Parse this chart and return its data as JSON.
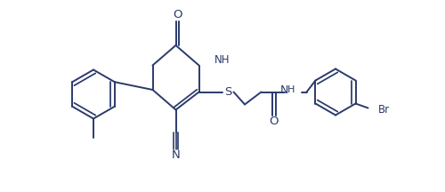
{
  "bg_color": "#ffffff",
  "line_color": "#2b3a6b",
  "line_width": 1.4,
  "font_size": 8.5,
  "figsize": [
    5.0,
    2.16
  ],
  "dpi": 100,
  "xlim": [
    0,
    10
  ],
  "ylim": [
    0,
    4.32
  ]
}
